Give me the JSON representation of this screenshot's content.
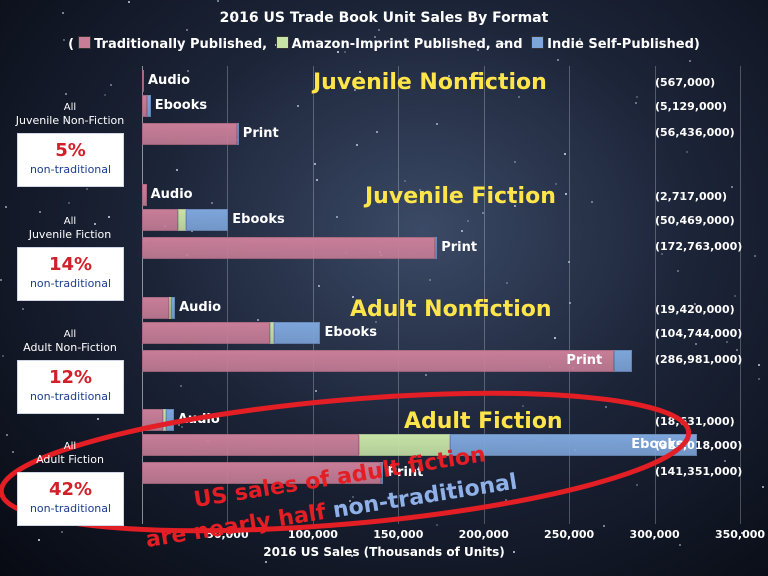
{
  "chart_data": {
    "type": "bar",
    "title": "2016 US Trade Book Unit Sales By Format",
    "legend": {
      "open": "(",
      "items": [
        {
          "name": "Traditionally Published,",
          "color": "#c97e98"
        },
        {
          "name": "Amazon-Imprint Published, and",
          "color": "#c8e4a7"
        },
        {
          "name": "Indie Self-Published)",
          "color": "#7ea6db"
        }
      ]
    },
    "xlabel": "2016 US Sales (Thousands of Units)",
    "xlim": [
      0,
      350000
    ],
    "xticks": [
      "50,000",
      "100,000",
      "150,000",
      "200,000",
      "250,000",
      "300,000",
      "350,000"
    ],
    "groups": [
      {
        "name": "Juvenile Nonfiction",
        "left_label": "All\nJuvenile Non-Fiction",
        "percent": "5%",
        "sub": "non-traditional",
        "bars": [
          {
            "format": "Audio",
            "total": "(567,000)",
            "trad": 560,
            "amazon": 0,
            "indie": 0
          },
          {
            "format": "Ebooks",
            "total": "(5,129,000)",
            "trad": 3000,
            "amazon": 0,
            "indie": 2100
          },
          {
            "format": "Print",
            "total": "(56,436,000)",
            "trad": 55500,
            "amazon": 0,
            "indie": 900
          }
        ]
      },
      {
        "name": "Juvenile Fiction",
        "left_label": "All\nJuvenile Fiction",
        "percent": "14%",
        "sub": "non-traditional",
        "bars": [
          {
            "format": "Audio",
            "total": "(2,717,000)",
            "trad": 2700,
            "amazon": 0,
            "indie": 0
          },
          {
            "format": "Ebooks",
            "total": "(50,469,000)",
            "trad": 21000,
            "amazon": 4500,
            "indie": 25000
          },
          {
            "format": "Print",
            "total": "(172,763,000)",
            "trad": 171500,
            "amazon": 0,
            "indie": 1300
          }
        ]
      },
      {
        "name": "Adult Nonfiction",
        "left_label": "All\nAdult Non-Fiction",
        "percent": "12%",
        "sub": "non-traditional",
        "bars": [
          {
            "format": "Audio",
            "total": "(19,420,000)",
            "trad": 15500,
            "amazon": 1500,
            "indie": 2400
          },
          {
            "format": "Ebooks",
            "total": "(104,744,000)",
            "trad": 75000,
            "amazon": 2500,
            "indie": 27000
          },
          {
            "format": "Print",
            "total": "(286,981,000)",
            "trad": 276000,
            "amazon": 0,
            "indie": 11000
          }
        ]
      },
      {
        "name": "Adult Fiction",
        "left_label": "All\nAdult Fiction",
        "percent": "42%",
        "sub": "non-traditional",
        "bars": [
          {
            "format": "Audio",
            "total": "(18,631,000)",
            "trad": 12500,
            "amazon": 1300,
            "indie": 4800
          },
          {
            "format": "Ebooks",
            "total": "(325,018,000)",
            "trad": 127000,
            "amazon": 53000,
            "indie": 145000
          },
          {
            "format": "Print",
            "total": "(141,351,000)",
            "trad": 140000,
            "amazon": 0,
            "indie": 1350
          }
        ]
      }
    ],
    "annotation": {
      "line1": "US sales of adult fiction",
      "line2a": "are nearly half",
      "line2b": "non-traditional",
      "highlight": "Adult Fiction"
    },
    "colors": {
      "trad": "#c97e98",
      "amazon": "#c8e4a7",
      "indie": "#7ea6db",
      "category_text": "#ffe54a",
      "callout": "#e31e24"
    }
  }
}
